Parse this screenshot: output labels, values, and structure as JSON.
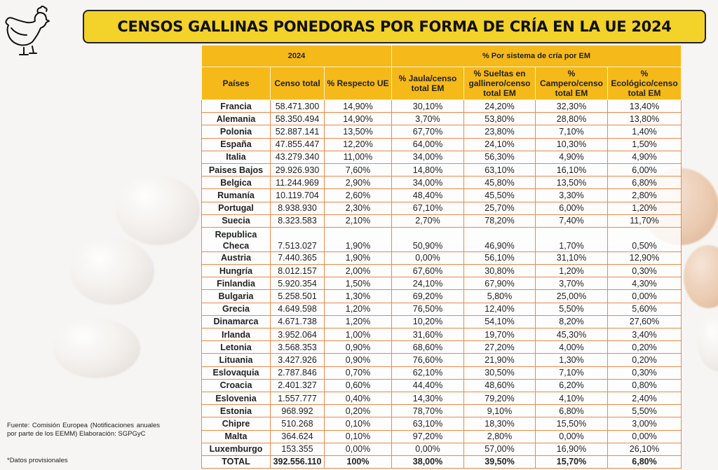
{
  "title": "CENSOS GALLINAS PONEDORAS POR FORMA DE CRÍA EN LA UE 2024",
  "colors": {
    "title_bg": "#f3d22a",
    "header_bg": "#f5b91a",
    "border": "#e8894a"
  },
  "icons": {
    "logo": "hen-icon"
  },
  "table": {
    "group_headers": [
      "2024",
      "% Por sistema de cría por EM"
    ],
    "columns": [
      "Países",
      "Censo total",
      "% Respecto UE",
      "% Jaula/censo total EM",
      "% Sueltas en gallinero/censo total EM",
      "% Campero/censo total EM",
      "% Ecológico/censo total EM"
    ],
    "rows": [
      [
        "Francia",
        "58.471.300",
        "14,90%",
        "30,10%",
        "24,20%",
        "32,30%",
        "13,40%"
      ],
      [
        "Alemania",
        "58.350.494",
        "14,90%",
        "3,70%",
        "53,80%",
        "28,80%",
        "13,80%"
      ],
      [
        "Polonia",
        "52.887.141",
        "13,50%",
        "67,70%",
        "23,80%",
        "7,10%",
        "1,40%"
      ],
      [
        "España",
        "47.855.447",
        "12,20%",
        "64,00%",
        "24,10%",
        "10,30%",
        "1,50%"
      ],
      [
        "Italia",
        "43.279.340",
        "11,00%",
        "34,00%",
        "56,30%",
        "4,90%",
        "4,90%"
      ],
      [
        "Paises Bajos",
        "29.926.930",
        "7,60%",
        "14,80%",
        "63,10%",
        "16,10%",
        "6,00%"
      ],
      [
        "Belgica",
        "11.244.969",
        "2,90%",
        "34,00%",
        "45,80%",
        "13,50%",
        "6,80%"
      ],
      [
        "Rumanía",
        "10.119.704",
        "2,60%",
        "48,40%",
        "45,50%",
        "3,30%",
        "2,80%"
      ],
      [
        "Portugal",
        "8.938.930",
        "2,30%",
        "67,10%",
        "25,70%",
        "6,00%",
        "1,20%"
      ],
      [
        "Suecia",
        "8.323.583",
        "2,10%",
        "2,70%",
        "78,20%",
        "7,40%",
        "11,70%"
      ],
      [
        "Republica Checa",
        "7.513.027",
        "1,90%",
        "50,90%",
        "46,90%",
        "1,70%",
        "0,50%"
      ],
      [
        "Austria",
        "7.440.365",
        "1,90%",
        "0,00%",
        "56,10%",
        "31,10%",
        "12,90%"
      ],
      [
        "Hungría",
        "8.012.157",
        "2,00%",
        "67,60%",
        "30,80%",
        "1,20%",
        "0,30%"
      ],
      [
        "Finlandia",
        "5.920.354",
        "1,50%",
        "24,10%",
        "67,90%",
        "3,70%",
        "4,30%"
      ],
      [
        "Bulgaria",
        "5.258.501",
        "1,30%",
        "69,20%",
        "5,80%",
        "25,00%",
        "0,00%"
      ],
      [
        "Grecia",
        "4.649.598",
        "1,20%",
        "76,50%",
        "12,40%",
        "5,50%",
        "5,60%"
      ],
      [
        "Dinamarca",
        "4.671.738",
        "1,20%",
        "10,20%",
        "54,10%",
        "8,20%",
        "27,60%"
      ],
      [
        "Irlanda",
        "3.952.064",
        "1,00%",
        "31,60%",
        "19,70%",
        "45,30%",
        "3,40%"
      ],
      [
        "Letonia",
        "3.568.353",
        "0,90%",
        "68,60%",
        "27,20%",
        "4,00%",
        "0,20%"
      ],
      [
        "Lituania",
        "3.427.926",
        "0,90%",
        "76,60%",
        "21,90%",
        "1,30%",
        "0,20%"
      ],
      [
        "Eslovaquia",
        "2.787.846",
        "0,70%",
        "62,10%",
        "30,50%",
        "7,10%",
        "0,30%"
      ],
      [
        "Croacia",
        "2.401.327",
        "0,60%",
        "44,40%",
        "48,60%",
        "6,20%",
        "0,80%"
      ],
      [
        "Eslovenia",
        "1.557.777",
        "0,40%",
        "14,30%",
        "79,20%",
        "4,10%",
        "2,40%"
      ],
      [
        "Estonia",
        "968.992",
        "0,20%",
        "78,70%",
        "9,10%",
        "6,80%",
        "5,50%"
      ],
      [
        "Chipre",
        "510.268",
        "0,10%",
        "63,10%",
        "18,30%",
        "15,50%",
        "3,00%"
      ],
      [
        "Malta",
        "364.624",
        "0,10%",
        "97,20%",
        "2,80%",
        "0,00%",
        "0,00%"
      ],
      [
        "Luxemburgo",
        "153.355",
        "0,00%",
        "0,00%",
        "57,00%",
        "16,90%",
        "26,10%"
      ]
    ],
    "total": [
      "TOTAL",
      "392.556.110",
      "100%",
      "38,00%",
      "39,50%",
      "15,70%",
      "6,80%"
    ]
  },
  "footer": {
    "source": "Fuente: Comisión Europea (Notificaciones anuales por parte de los EEMM) Elaboración: SGPGyC",
    "note": "*Datos provisionales"
  }
}
